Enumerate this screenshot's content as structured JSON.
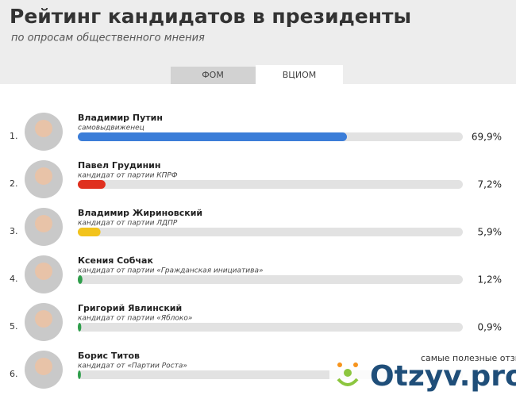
{
  "chart_data": {
    "type": "bar",
    "title": "Рейтинг кандидатов в президенты",
    "subtitle": "по опросам общественного мнения",
    "tabs": [
      "ФОМ",
      "ВЦИОМ"
    ],
    "ranks": [
      "1.",
      "2.",
      "3.",
      "4.",
      "5.",
      "6."
    ],
    "categories": [
      "Владимир Путин",
      "Павел Грудинин",
      "Владимир Жириновский",
      "Ксения Собчак",
      "Григорий Явлинский",
      "Борис Титов"
    ],
    "descriptions": [
      "самовыдвиженец",
      "кандидат от партии КПРФ",
      "кандидат от партии ЛДПР",
      "кандидат от партии «Гражданская инициатива»",
      "кандидат от партии «Яблоко»",
      "кандидат от «Партии Роста»"
    ],
    "values": [
      69.9,
      7.2,
      5.9,
      1.2,
      0.9,
      0.8
    ],
    "value_labels": [
      "69,9%",
      "7,2%",
      "5,9%",
      "1,2%",
      "0,9%",
      null
    ],
    "colors": [
      "#3b7dd8",
      "#e0301e",
      "#f2c31c",
      "#2f9e4b",
      "#2f9e4b",
      "#2f9e4b"
    ],
    "xlim": [
      0,
      100
    ],
    "watermark": {
      "tagline": "самые полезные отзывы",
      "brand": "Otzyv.pro"
    }
  }
}
